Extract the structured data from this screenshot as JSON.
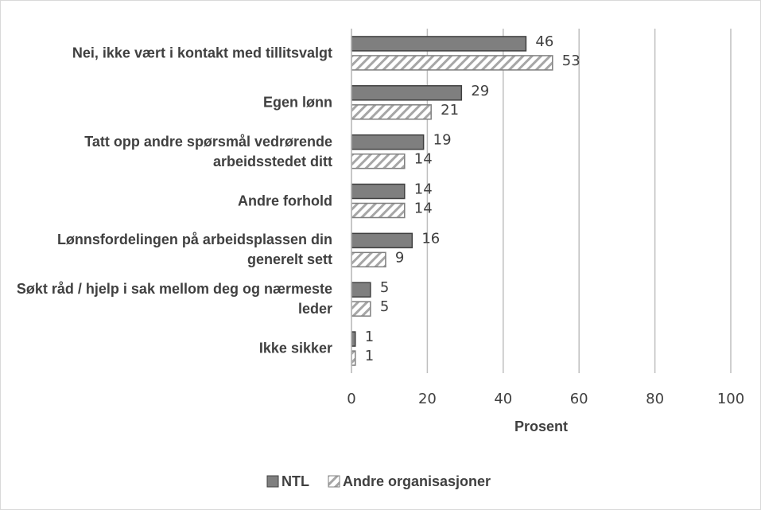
{
  "chart_data": {
    "type": "hbar",
    "x_label": "Prosent",
    "categories": [
      "Nei, ikke vært i kontakt med tillitsvalgt",
      "Egen lønn",
      "Tatt opp andre spørsmål vedrørende arbeidsstedet ditt",
      "Andre forhold",
      "Lønnsfordelingen på arbeidsplassen din generelt sett",
      "Søkt råd / hjelp i sak mellom deg og nærmeste leder",
      "Ikke sikker"
    ],
    "series": [
      {
        "name": "NTL",
        "color": "#7f7f7f",
        "values": [
          46,
          29,
          19,
          14,
          16,
          5,
          1
        ]
      },
      {
        "name": "Andre organisasjoner",
        "color": "#a6a6a6",
        "pattern": "hatch",
        "values": [
          53,
          21,
          14,
          14,
          9,
          5,
          1
        ]
      }
    ],
    "xlim": [
      0,
      100
    ],
    "xticks": [
      0,
      20,
      40,
      60,
      80,
      100
    ],
    "grid": true,
    "legend": "bottom"
  }
}
